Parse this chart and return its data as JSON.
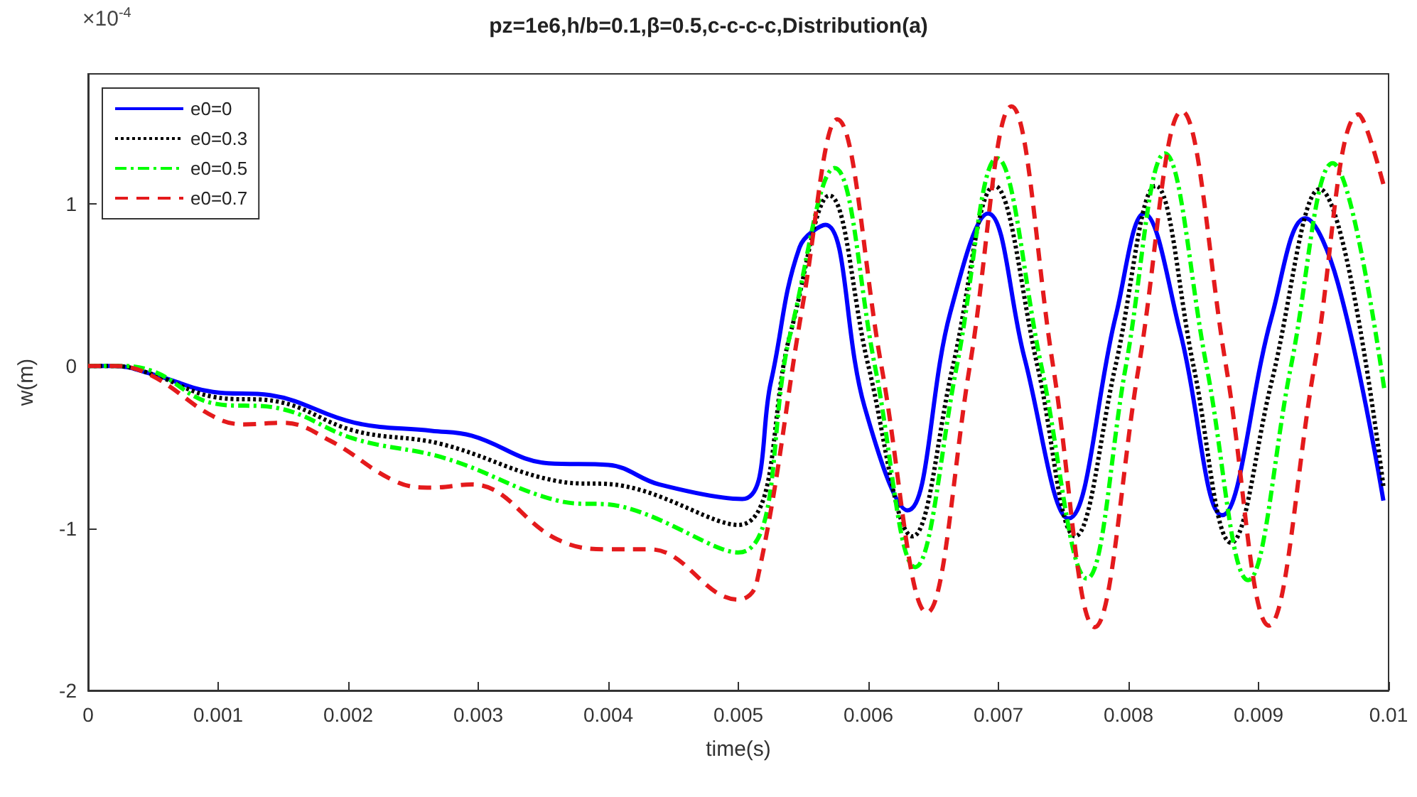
{
  "chart_data": {
    "type": "line",
    "title": "pz=1e6,h/b=0.1,β=0.5,c-c-c-c,Distribution(a)",
    "xlabel": "time(s)",
    "ylabel": "w(m)",
    "annotations": [
      "×10$^{-4}$"
    ],
    "xlim": [
      0,
      0.01
    ],
    "xticks": [
      0,
      0.001,
      0.002,
      0.003,
      0.004,
      0.005,
      0.006,
      0.007,
      0.008,
      0.009,
      0.01
    ],
    "ylim": [
      -2,
      1.8
    ],
    "yticks": [
      -2,
      -1,
      0,
      1
    ],
    "grid": false,
    "legend": "top left",
    "marker": "none",
    "series": [
      {
        "name": "e0=0",
        "color": "#0000ff",
        "line_style": "solid",
        "x": [
          0,
          0.0002,
          0.00049,
          0.00096,
          0.0014,
          0.00205,
          0.00264,
          0.00295,
          0.00354,
          0.004,
          0.00439,
          0.00503,
          0.00525,
          0.00547,
          0.00567,
          0.00597,
          0.0063,
          0.00663,
          0.00692,
          0.0072,
          0.00754,
          0.0079,
          0.00812,
          0.0084,
          0.00872,
          0.0091,
          0.00936,
          0.00961,
          0.00996
        ],
        "values": [
          0,
          0,
          -0.05,
          -0.16,
          -0.18,
          -0.35,
          -0.4,
          -0.43,
          -0.6,
          -0.61,
          -0.73,
          -0.82,
          -0.1,
          0.73,
          0.87,
          -0.25,
          -0.89,
          0.33,
          0.94,
          0.05,
          -0.94,
          0.3,
          0.94,
          0.2,
          -0.92,
          0.3,
          0.91,
          0.51,
          -0.83
        ]
      },
      {
        "name": "e0=0.3",
        "color": "#000000",
        "line_style": "dotted",
        "x": [
          0,
          0.0002,
          0.00049,
          0.00096,
          0.00146,
          0.00205,
          0.00271,
          0.00361,
          0.00412,
          0.005,
          0.0054,
          0.0057,
          0.006,
          0.00634,
          0.00665,
          0.00697,
          0.0073,
          0.00759,
          0.0079,
          0.00821,
          0.0085,
          0.00879,
          0.0091,
          0.00947,
          0.00996
        ],
        "values": [
          0,
          0,
          -0.05,
          -0.19,
          -0.22,
          -0.4,
          -0.48,
          -0.71,
          -0.74,
          -0.98,
          0.2,
          1.05,
          0.0,
          -1.05,
          0.0,
          1.11,
          0.0,
          -1.05,
          0.0,
          1.11,
          0.0,
          -1.09,
          -0.1,
          1.09,
          -0.74
        ]
      },
      {
        "name": "e0=0.5",
        "color": "#00ff00",
        "line_style": "dashed",
        "x": [
          0,
          0.0002,
          0.00049,
          0.00096,
          0.00146,
          0.00205,
          0.00275,
          0.00361,
          0.00412,
          0.005,
          0.0054,
          0.00574,
          0.00605,
          0.00636,
          0.00668,
          0.00699,
          0.00733,
          0.00768,
          0.00798,
          0.00828,
          0.0086,
          0.00892,
          0.00925,
          0.00957,
          0.00997
        ],
        "values": [
          0,
          0,
          -0.03,
          -0.23,
          -0.26,
          -0.45,
          -0.57,
          -0.83,
          -0.87,
          -1.15,
          0.2,
          1.22,
          0.0,
          -1.24,
          0.0,
          1.28,
          0.0,
          -1.31,
          0.0,
          1.31,
          0.0,
          -1.32,
          0.0,
          1.25,
          -0.16
        ]
      },
      {
        "name": "e0=0.7",
        "color": "#e41a1c",
        "line_style": "dashed",
        "x": [
          0,
          0.0002,
          0.00049,
          0.00096,
          0.0012,
          0.0015,
          0.00186,
          0.00236,
          0.00264,
          0.00295,
          0.00361,
          0.004,
          0.00432,
          0.005,
          0.00514,
          0.0055,
          0.00576,
          0.0061,
          0.00645,
          0.00678,
          0.0071,
          0.00742,
          0.00774,
          0.00808,
          0.00841,
          0.00875,
          0.00908,
          0.00943,
          0.00977,
          0.00997
        ],
        "values": [
          0,
          0,
          -0.06,
          -0.31,
          -0.36,
          -0.35,
          -0.46,
          -0.71,
          -0.75,
          -0.73,
          -1.07,
          -1.13,
          -1.13,
          -1.44,
          -1.34,
          0.4,
          1.52,
          0.0,
          -1.52,
          0.0,
          1.6,
          0.0,
          -1.61,
          0.0,
          1.57,
          0.0,
          -1.6,
          0.0,
          1.55,
          1.09
        ]
      }
    ]
  }
}
